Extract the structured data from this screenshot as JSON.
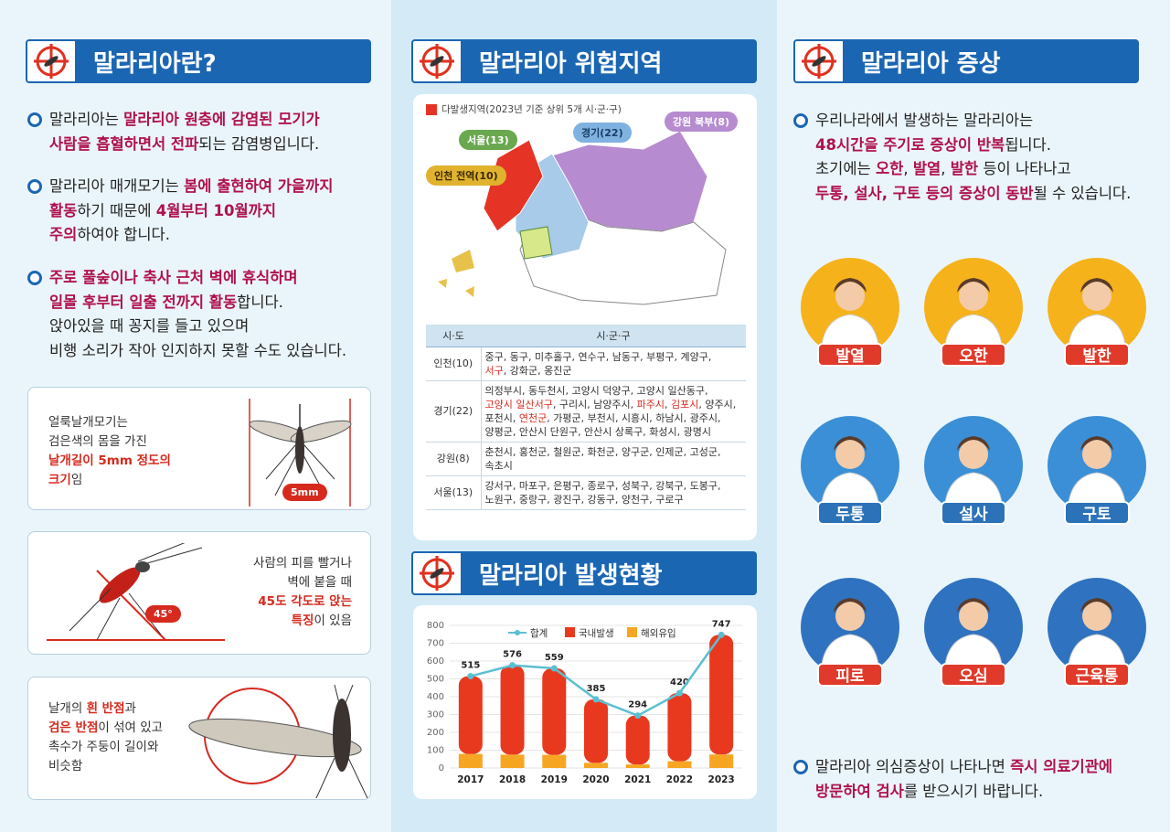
{
  "col1": {
    "header": "말라리아란?",
    "bullets": [
      {
        "parts": [
          {
            "t": "말라리아는 ",
            "s": ""
          },
          {
            "t": "말라리아 원충에 감염된 모기가",
            "s": "hl"
          },
          {
            "t": "\n",
            "s": ""
          },
          {
            "t": "사람을 흡혈하면서 전파",
            "s": "hl"
          },
          {
            "t": "되는 감염병입니다.",
            "s": ""
          }
        ]
      },
      {
        "parts": [
          {
            "t": "말라리아 매개모기는 ",
            "s": ""
          },
          {
            "t": "봄에 출현하여 가을까지",
            "s": "hl"
          },
          {
            "t": "\n",
            "s": ""
          },
          {
            "t": "활동",
            "s": "hl"
          },
          {
            "t": "하기 때문에 ",
            "s": ""
          },
          {
            "t": "4월부터 10월까지",
            "s": "hl"
          },
          {
            "t": "\n",
            "s": ""
          },
          {
            "t": "주의",
            "s": "hl"
          },
          {
            "t": "하여야 합니다.",
            "s": ""
          }
        ]
      },
      {
        "parts": [
          {
            "t": "주로 풀숲이나 축사 근처 벽에 휴식하며",
            "s": "hl"
          },
          {
            "t": "\n",
            "s": ""
          },
          {
            "t": "일몰 후부터 일출 전까지 활동",
            "s": "hl"
          },
          {
            "t": "합니다.",
            "s": ""
          },
          {
            "t": "\n",
            "s": ""
          },
          {
            "t": "앉아있을 때 꽁지를 들고 있으며",
            "s": ""
          },
          {
            "t": "\n",
            "s": ""
          },
          {
            "t": "비행 소리가 작아 인지하지 못할 수도 있습니다.",
            "s": ""
          }
        ]
      }
    ],
    "cards": [
      {
        "parts": [
          {
            "t": "얼룩날개모기는",
            "s": ""
          },
          {
            "t": "\n",
            "s": ""
          },
          {
            "t": "검은색의 몸을 가진",
            "s": ""
          },
          {
            "t": "\n",
            "s": ""
          },
          {
            "t": "날개길이 5mm 정도의",
            "s": "red"
          },
          {
            "t": "\n",
            "s": ""
          },
          {
            "t": "크기",
            "s": "red"
          },
          {
            "t": "임",
            "s": ""
          }
        ],
        "tag": "5mm"
      },
      {
        "parts": [
          {
            "t": "사람의 피를 빨거나",
            "s": ""
          },
          {
            "t": "\n",
            "s": ""
          },
          {
            "t": "벽에 붙을 때",
            "s": ""
          },
          {
            "t": "\n",
            "s": ""
          },
          {
            "t": "45도 각도로 앉는",
            "s": "red"
          },
          {
            "t": "\n",
            "s": ""
          },
          {
            "t": "특징",
            "s": "red"
          },
          {
            "t": "이 있음",
            "s": ""
          }
        ],
        "tag": "45°"
      },
      {
        "parts": [
          {
            "t": "날개의 ",
            "s": ""
          },
          {
            "t": "흰 반점",
            "s": "red"
          },
          {
            "t": "과",
            "s": ""
          },
          {
            "t": "\n",
            "s": ""
          },
          {
            "t": "검은 반점",
            "s": "red"
          },
          {
            "t": "이 섞여 있고",
            "s": ""
          },
          {
            "t": "\n",
            "s": ""
          },
          {
            "t": "촉수가 주둥이 길이와",
            "s": ""
          },
          {
            "t": "\n",
            "s": ""
          },
          {
            "t": "비슷함",
            "s": ""
          }
        ]
      }
    ]
  },
  "col2": {
    "header1": "말라리아 위험지역",
    "legend": "다발생지역(2023년 기준 상위 5개 시·군·구)",
    "badges": {
      "seoul": "서울(13)",
      "gyeonggi": "경기(22)",
      "gangwon": "강원 북부(8)",
      "incheon": "인천 전역(10)"
    },
    "table_head": [
      "시·도",
      "시·군·구"
    ],
    "rows": [
      {
        "k": "인천(10)",
        "parts": [
          {
            "t": "중구, 동구, 미추홀구, 연수구, 남동구, 부평구, 계양구,",
            "r": false
          },
          {
            "t": "\n",
            "r": false
          },
          {
            "t": "서구",
            "r": true
          },
          {
            "t": ", 강화군, 옹진군",
            "r": false
          }
        ]
      },
      {
        "k": "경기(22)",
        "parts": [
          {
            "t": "의정부시, 동두천시, 고양시 덕양구, 고양시 일산동구,",
            "r": false
          },
          {
            "t": "\n",
            "r": false
          },
          {
            "t": "고양시 일산서구",
            "r": true
          },
          {
            "t": ", 구리시, 남양주시, ",
            "r": false
          },
          {
            "t": "파주시",
            "r": true
          },
          {
            "t": ", ",
            "r": false
          },
          {
            "t": "김포시",
            "r": true
          },
          {
            "t": ", 양주시,",
            "r": false
          },
          {
            "t": "\n",
            "r": false
          },
          {
            "t": "포천시, ",
            "r": false
          },
          {
            "t": "연천군",
            "r": true
          },
          {
            "t": ", 가평군, 부천시, 시흥시, 하남시, 광주시,",
            "r": false
          },
          {
            "t": "\n",
            "r": false
          },
          {
            "t": "양평군, 안산시 단원구, 안산시 상록구, 화성시, 광명시",
            "r": false
          }
        ]
      },
      {
        "k": "강원(8)",
        "parts": [
          {
            "t": "춘천시, 홍천군, 철원군, 화천군, 양구군, 인제군, 고성군,",
            "r": false
          },
          {
            "t": "\n",
            "r": false
          },
          {
            "t": "속초시",
            "r": false
          }
        ]
      },
      {
        "k": "서울(13)",
        "parts": [
          {
            "t": "강서구, 마포구, 은평구, 종로구, 성북구, 강북구, 도봉구,",
            "r": false
          },
          {
            "t": "\n",
            "r": false
          },
          {
            "t": "노원구, 중랑구, 광진구, 강동구, 양천구, 구로구",
            "r": false
          }
        ]
      }
    ],
    "header2": "말라리아 발생현황"
  },
  "chart_data": {
    "type": "bar",
    "categories": [
      "2017",
      "2018",
      "2019",
      "2020",
      "2021",
      "2022",
      "2023"
    ],
    "series": [
      {
        "name": "합계",
        "type": "line",
        "values": [
          515,
          576,
          559,
          385,
          294,
          420,
          747
        ]
      },
      {
        "name": "국내발생",
        "values": [
          436,
          501,
          485,
          356,
          274,
          382,
          671
        ]
      },
      {
        "name": "해외유입",
        "values": [
          79,
          75,
          74,
          29,
          20,
          38,
          76
        ]
      }
    ],
    "ylim": [
      0,
      800
    ],
    "yticks": [
      "0",
      "100",
      "200",
      "300",
      "400",
      "500",
      "600",
      "700",
      "800"
    ],
    "colors": {
      "total": "#5bbfd2",
      "domestic": "#e8391e",
      "overseas": "#f6a623"
    }
  },
  "col3": {
    "header": "말라리아 증상",
    "intro": [
      {
        "t": "우리나라에서 발생하는 말라리아는",
        "s": ""
      },
      {
        "t": "\n",
        "s": ""
      },
      {
        "t": "48시간을 주기로 증상이 반복",
        "s": "hl"
      },
      {
        "t": "됩니다.",
        "s": ""
      },
      {
        "t": "\n",
        "s": ""
      },
      {
        "t": "초기에는 ",
        "s": ""
      },
      {
        "t": "오한",
        "s": "hl"
      },
      {
        "t": ", ",
        "s": ""
      },
      {
        "t": "발열",
        "s": "hl"
      },
      {
        "t": ", ",
        "s": ""
      },
      {
        "t": "발한",
        "s": "hl"
      },
      {
        "t": " 등이 나타나고",
        "s": ""
      },
      {
        "t": "\n",
        "s": ""
      },
      {
        "t": "두통, 설사, 구토 등의 증상이 동반",
        "s": "hl"
      },
      {
        "t": "될 수 있습니다.",
        "s": ""
      }
    ],
    "symptoms": [
      "발열",
      "오한",
      "발한",
      "두통",
      "설사",
      "구토",
      "피로",
      "오심",
      "근육통"
    ],
    "outro": [
      {
        "t": "말라리아 의심증상이 나타나면 ",
        "s": ""
      },
      {
        "t": "즉시 의료기관에",
        "s": "hl"
      },
      {
        "t": "\n",
        "s": ""
      },
      {
        "t": "방문하여 검사",
        "s": "hl"
      },
      {
        "t": "를 받으시기 바랍니다.",
        "s": ""
      }
    ]
  }
}
